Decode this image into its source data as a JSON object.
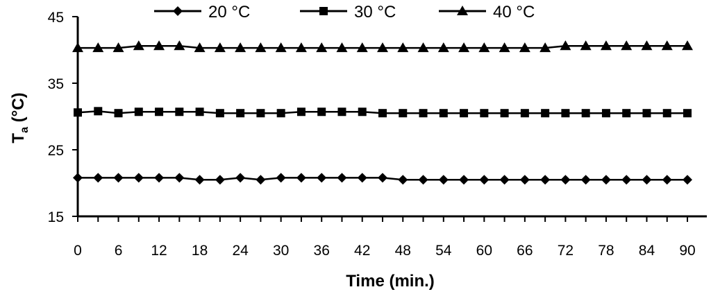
{
  "chart_data": {
    "type": "line",
    "xlabel": "Time (min.)",
    "ylabel_main": "T",
    "ylabel_sub": "a",
    "ylabel_unit": " (°C)",
    "xlim": [
      0,
      90
    ],
    "ylim": [
      15,
      45
    ],
    "x_ticks": [
      0,
      6,
      12,
      18,
      24,
      30,
      36,
      42,
      48,
      54,
      60,
      66,
      72,
      78,
      84,
      90
    ],
    "y_ticks": [
      15,
      25,
      35,
      45
    ],
    "grid": false,
    "legend_position": "top",
    "x": [
      0,
      3,
      6,
      9,
      12,
      15,
      18,
      21,
      24,
      27,
      30,
      33,
      36,
      39,
      42,
      45,
      48,
      51,
      54,
      57,
      60,
      63,
      66,
      69,
      72,
      75,
      78,
      81,
      84,
      87,
      90
    ],
    "series": [
      {
        "name": "20 °C",
        "marker": "diamond",
        "values": [
          20.8,
          20.8,
          20.8,
          20.8,
          20.8,
          20.8,
          20.5,
          20.5,
          20.8,
          20.5,
          20.8,
          20.8,
          20.8,
          20.8,
          20.8,
          20.8,
          20.5,
          20.5,
          20.5,
          20.5,
          20.5,
          20.5,
          20.5,
          20.5,
          20.5,
          20.5,
          20.5,
          20.5,
          20.5,
          20.5,
          20.5
        ]
      },
      {
        "name": "30 °C",
        "marker": "square",
        "values": [
          30.6,
          30.8,
          30.5,
          30.7,
          30.7,
          30.7,
          30.7,
          30.5,
          30.5,
          30.5,
          30.5,
          30.7,
          30.7,
          30.7,
          30.7,
          30.5,
          30.5,
          30.5,
          30.5,
          30.5,
          30.5,
          30.5,
          30.5,
          30.5,
          30.5,
          30.5,
          30.5,
          30.5,
          30.5,
          30.5,
          30.5
        ]
      },
      {
        "name": "40 °C",
        "marker": "triangle",
        "values": [
          40.3,
          40.3,
          40.3,
          40.6,
          40.6,
          40.6,
          40.3,
          40.3,
          40.3,
          40.3,
          40.3,
          40.3,
          40.3,
          40.3,
          40.3,
          40.3,
          40.3,
          40.3,
          40.3,
          40.3,
          40.3,
          40.3,
          40.3,
          40.3,
          40.6,
          40.6,
          40.6,
          40.6,
          40.6,
          40.6,
          40.6
        ]
      }
    ]
  }
}
